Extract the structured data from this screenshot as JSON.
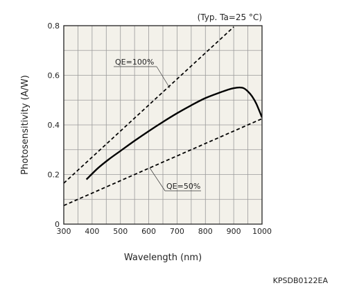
{
  "chart_data": {
    "type": "line",
    "title": "",
    "note": "(Typ. Ta=25 °C)",
    "xlabel": "Wavelength (nm)",
    "ylabel": "Photosensitivity (A/W)",
    "xlim": [
      300,
      1000
    ],
    "ylim": [
      0,
      0.8
    ],
    "xticks": [
      300,
      400,
      500,
      600,
      700,
      800,
      900,
      1000
    ],
    "yticks": [
      0,
      0.2,
      0.4,
      0.6,
      0.8
    ],
    "ytick_labels": [
      "0",
      "0.2",
      "0.4",
      "0.6",
      "0.8"
    ],
    "grid": true,
    "background_color": "#f3f1ea",
    "line_color": "#000000",
    "series": [
      {
        "name": "",
        "style": "solid",
        "x": [
          380,
          420,
          460,
          500,
          550,
          600,
          650,
          700,
          750,
          800,
          850,
          880,
          900,
          920,
          935,
          950,
          965,
          980,
          1000
        ],
        "y": [
          0.18,
          0.225,
          0.262,
          0.295,
          0.336,
          0.375,
          0.412,
          0.447,
          0.479,
          0.508,
          0.53,
          0.542,
          0.548,
          0.551,
          0.548,
          0.535,
          0.515,
          0.485,
          0.43
        ]
      },
      {
        "name": "QE=100%",
        "style": "dashed",
        "x": [
          300,
          900
        ],
        "y": [
          0.165,
          0.795
        ]
      },
      {
        "name": "QE=50%",
        "style": "dashed",
        "x": [
          300,
          1000
        ],
        "y": [
          0.075,
          0.425
        ]
      }
    ],
    "annotations": [
      {
        "text": "QE=100%",
        "target_series": 1
      },
      {
        "text": "QE=50%",
        "target_series": 2
      }
    ]
  },
  "document_code": "KPSDB0122EA"
}
